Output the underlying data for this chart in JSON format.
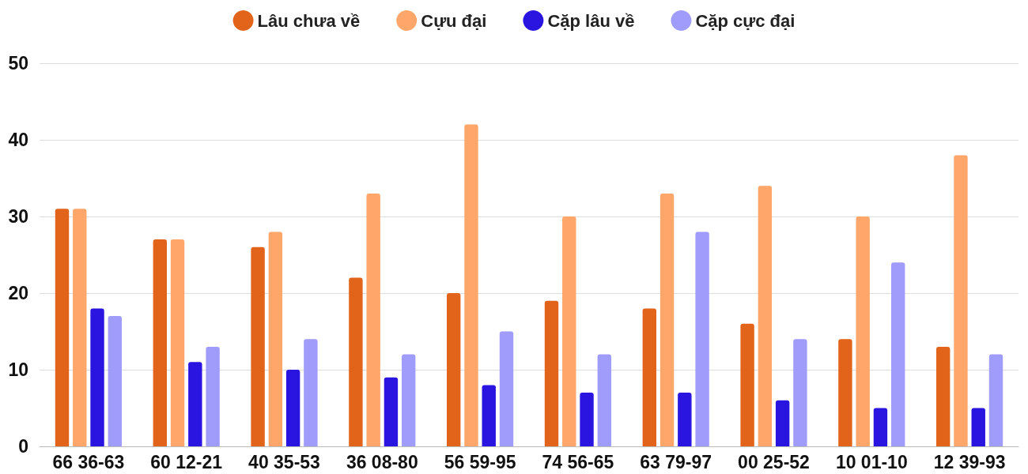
{
  "chart_data": {
    "type": "bar",
    "categories": [
      "66 36-63",
      "60 12-21",
      "40 35-53",
      "36 08-80",
      "56 59-95",
      "74 56-65",
      "63 79-97",
      "00 25-52",
      "10 01-10",
      "12 39-93"
    ],
    "series": [
      {
        "name": "Lâu chưa về",
        "color": "#e2641a",
        "values": [
          31,
          27,
          26,
          22,
          20,
          19,
          18,
          16,
          14,
          13
        ]
      },
      {
        "name": "Cựu đại",
        "color": "#ffa66b",
        "values": [
          31,
          27,
          28,
          33,
          42,
          30,
          33,
          34,
          30,
          38
        ]
      },
      {
        "name": "Cặp lâu về",
        "color": "#2a14e0",
        "values": [
          18,
          11,
          10,
          9,
          8,
          7,
          7,
          6,
          5,
          5
        ]
      },
      {
        "name": "Cặp cực đại",
        "color": "#a09cfc",
        "values": [
          17,
          13,
          14,
          12,
          15,
          12,
          28,
          14,
          24,
          12
        ]
      }
    ],
    "ylim": [
      0,
      50
    ],
    "yticks": [
      0,
      10,
      20,
      30,
      40,
      50
    ],
    "grid": "y",
    "legend": "top"
  }
}
